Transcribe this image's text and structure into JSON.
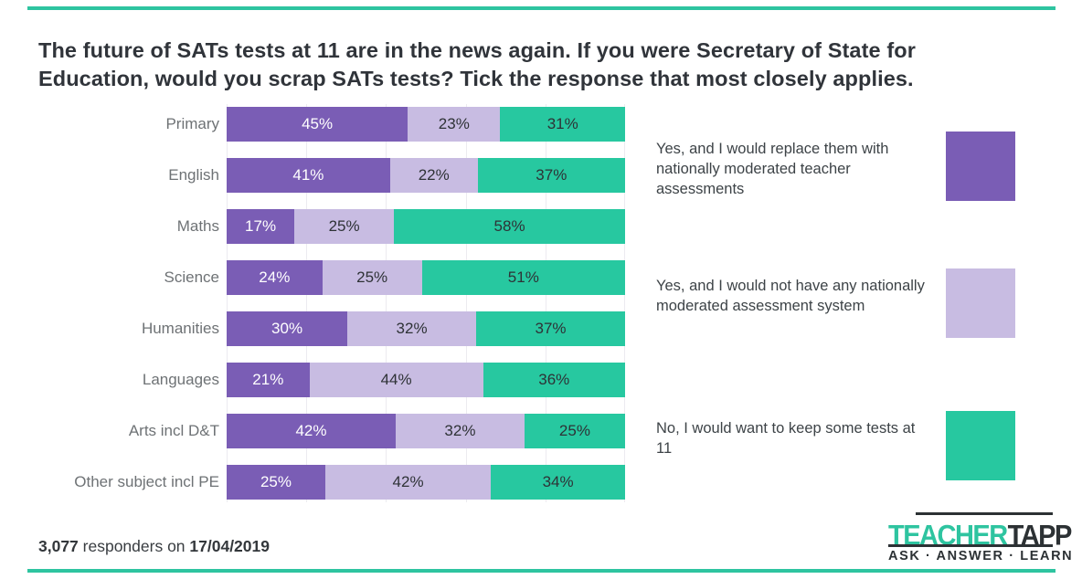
{
  "page": {
    "background": "#ffffff",
    "accent_rule_color": "#2ec4a0"
  },
  "title_display": {
    "line1": "The future of SATs tests at 11 are in the news again. If you were Secretary of State for",
    "line2": "Education, would you scrap SATs tests? Tick the response that most closely applies."
  },
  "chart_data": {
    "type": "bar",
    "orientation": "horizontal",
    "stacked": true,
    "normalized_to_100": true,
    "title": "The future of SATs tests at 11 are in the news again. If you were Secretary of State for Education, would you scrap SATs tests? Tick the response that most closely applies.",
    "categories": [
      "Primary",
      "English",
      "Maths",
      "Science",
      "Humanities",
      "Languages",
      "Arts incl D&T",
      "Other subject incl PE"
    ],
    "series": [
      {
        "name": "Yes, and I would replace them with nationally moderated teacher assessments",
        "color": "#7a5db5",
        "label_text_color": "#ffffff",
        "values": [
          45,
          41,
          17,
          24,
          30,
          21,
          42,
          25
        ]
      },
      {
        "name": "Yes, and I would not have any nationally moderated assessment system",
        "color": "#c8bce2",
        "label_text_color": "#2e3236",
        "values": [
          23,
          22,
          25,
          25,
          32,
          44,
          32,
          42
        ]
      },
      {
        "name": "No, I would want to keep some tests at 11",
        "color": "#27c8a0",
        "label_text_color": "#2e3236",
        "values": [
          31,
          37,
          58,
          51,
          37,
          36,
          25,
          34
        ]
      }
    ],
    "value_label_format": "{v}%",
    "xlim": [
      0,
      100
    ],
    "gridlines_percent": [
      0,
      20,
      40,
      60,
      80,
      100
    ],
    "grid": true,
    "legend_position": "right"
  },
  "footer": {
    "count": "3,077",
    "middle": " responders on ",
    "date": "17/04/2019"
  },
  "logo": {
    "word1": "TEACHER",
    "word2": "TAPP",
    "tagline": "ASK · ANSWER · LEARN",
    "teal": "#2ec4a0",
    "dark": "#2c3134"
  }
}
